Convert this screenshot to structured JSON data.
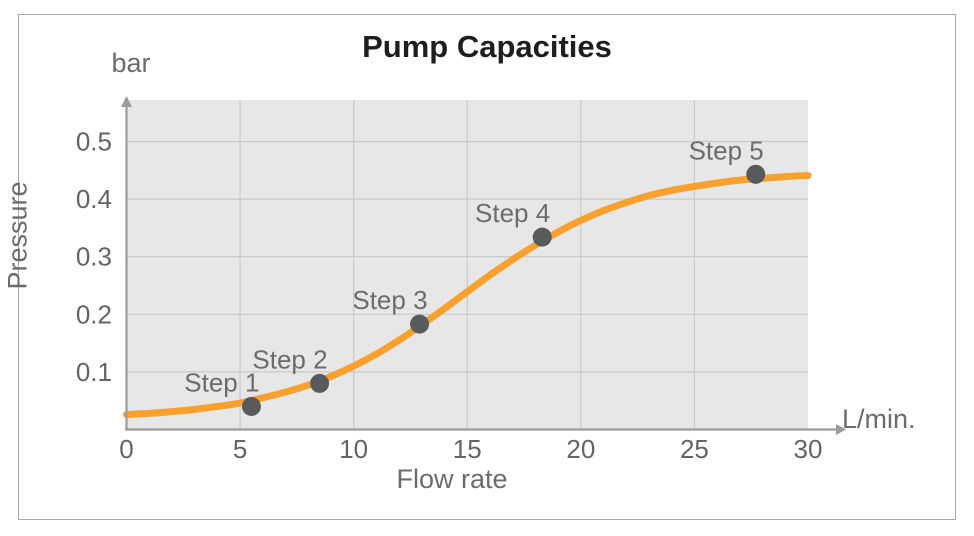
{
  "chart_data": {
    "type": "line",
    "title": "Pump Capacities",
    "xlabel": "Flow rate",
    "ylabel": "Pressure",
    "x_unit": "L/min.",
    "y_unit": "bar",
    "xlim": [
      0,
      30
    ],
    "ylim": [
      0,
      0.57
    ],
    "x_ticks": [
      0,
      5,
      10,
      15,
      20,
      25,
      30
    ],
    "x_tick_labels": [
      "0",
      "5",
      "10",
      "15",
      "20",
      "25",
      "30"
    ],
    "y_ticks": [
      0.1,
      0.2,
      0.3,
      0.4,
      0.5
    ],
    "y_tick_labels": [
      "0.1",
      "0.2",
      "0.3",
      "0.4",
      "0.5"
    ],
    "grid": true,
    "legend": "none",
    "points": [
      {
        "label": "Step 1",
        "x": 5.5,
        "y": 0.04
      },
      {
        "label": "Step 2",
        "x": 8.5,
        "y": 0.08
      },
      {
        "label": "Step 3",
        "x": 12.9,
        "y": 0.183
      },
      {
        "label": "Step 4",
        "x": 18.3,
        "y": 0.334
      },
      {
        "label": "Step 5",
        "x": 27.7,
        "y": 0.443
      }
    ],
    "curve": [
      [
        0,
        0.026
      ],
      [
        1,
        0.028
      ],
      [
        2,
        0.031
      ],
      [
        3,
        0.035
      ],
      [
        4,
        0.04
      ],
      [
        5,
        0.046
      ],
      [
        6,
        0.055
      ],
      [
        7,
        0.065
      ],
      [
        8,
        0.077
      ],
      [
        9,
        0.092
      ],
      [
        10,
        0.11
      ],
      [
        11,
        0.131
      ],
      [
        12,
        0.155
      ],
      [
        13,
        0.182
      ],
      [
        14,
        0.21
      ],
      [
        15,
        0.239
      ],
      [
        16,
        0.268
      ],
      [
        17,
        0.295
      ],
      [
        18,
        0.32
      ],
      [
        19,
        0.343
      ],
      [
        20,
        0.363
      ],
      [
        21,
        0.38
      ],
      [
        22,
        0.394
      ],
      [
        23,
        0.406
      ],
      [
        24,
        0.415
      ],
      [
        25,
        0.422
      ],
      [
        26,
        0.428
      ],
      [
        27,
        0.433
      ],
      [
        28,
        0.436
      ],
      [
        29,
        0.439
      ],
      [
        30,
        0.441
      ]
    ],
    "colors": {
      "curve": "#F8A12F",
      "marker": "#595A5C",
      "plot_bg": "#E7E7E8",
      "grid": "#C9C9CB",
      "axis": "#9C9C9E",
      "label_gray": "#6B6C6E",
      "tick_gray": "#636466",
      "title": "#1E1E20",
      "border": "#A7A7A9"
    }
  }
}
